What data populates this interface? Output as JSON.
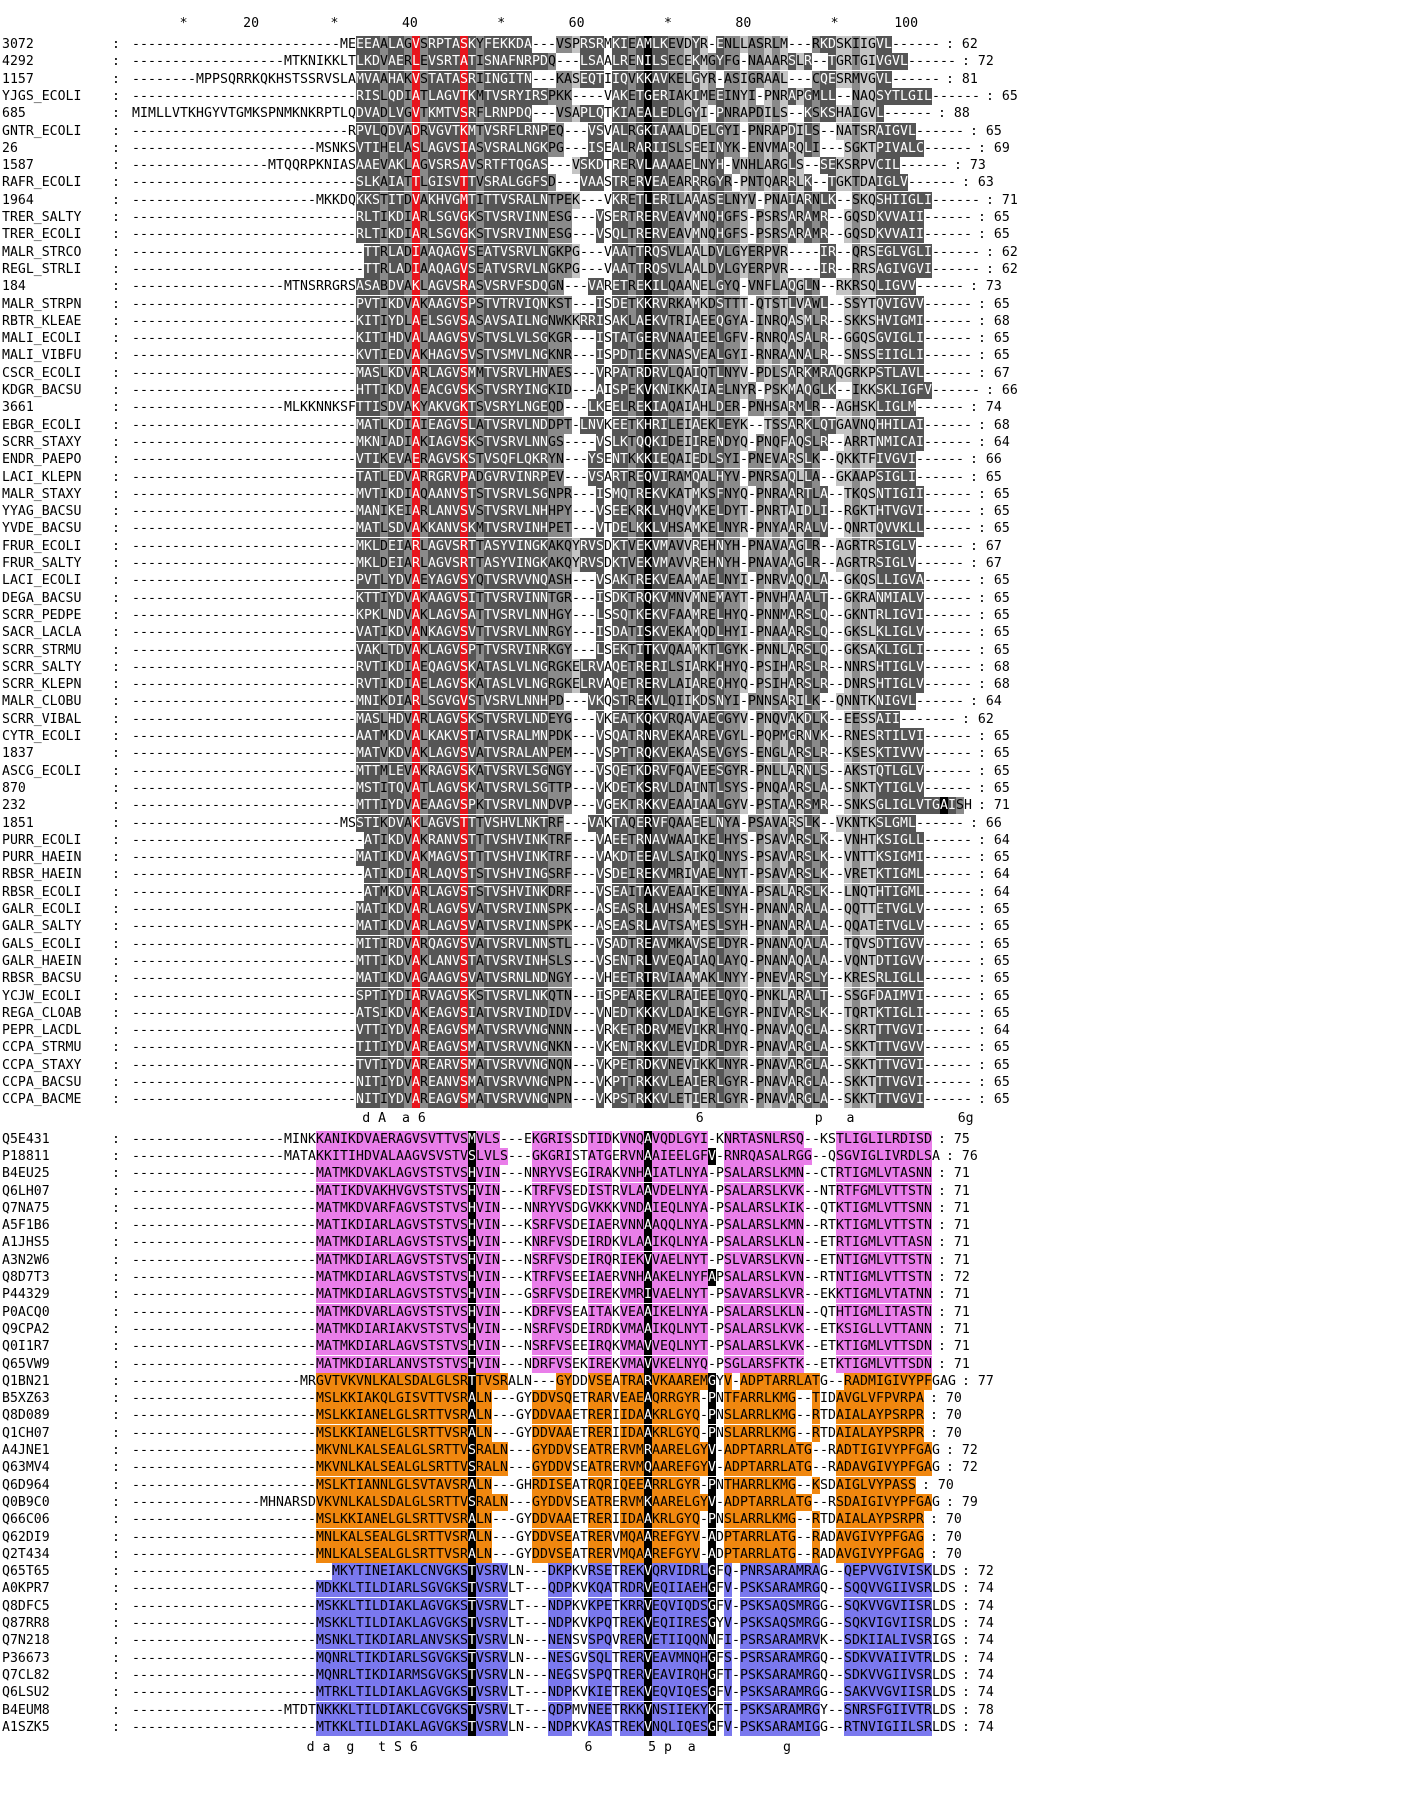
{
  "ruler": "      *       20         *        40          *        60          *        80          *       100",
  "block1": {
    "conserved_label": "                             d A  a 6                                  6              p   a             6g",
    "rows": [
      [
        "3072",
        "--------------------------MEEEAALAGVSRPTASKYFEKKDA---VSPRSRMKIEAMLKEVDYR-ENLLASRLM---RKDSKIIGVL------",
        "62"
      ],
      [
        "4292",
        "-------------------MTKNIKKLTLKDVAERLEVSRTATISNAFNRPDQ---LSAALRENILSECEKMGYFG-NAAARSLR--TGRTGIVGVL------",
        "72"
      ],
      [
        "1157",
        "--------MPPSQRRKQKHSTSSRVSLAMVAAHAKVSTATASRIINGITN---KASEQTIIQVKKAVKELGYR-ASIGRAAL---CQESRMVGVL------",
        "81"
      ],
      [
        "YJGS_ECOLI",
        "----------------------------RISLQDIATLAGVTKMTVSRYIRSPKK----VAKETGERIAKIMEEINYI-PNRAPGMLL--NAQSYTLGIL------",
        "65"
      ],
      [
        "685",
        "MIMLLVTKHGYVTGMKSPNMKNKRPTLQDVADLVGVTKMTVSRFLRNPDQ---VSAPLQTKIAEALEDLGYI-PNRAPDILS--KSKSHAIGVL------",
        "88"
      ],
      [
        "GNTR_ECOLI",
        "---------------------------RPVLQDVADRVGVTKMTVSRFLRNPEQ---VSVALRGKIAAALDELGYI-PNRAPDILS--NATSRAIGVL------",
        "65"
      ],
      [
        "26",
        "-----------------------MSNKSVTIHELASLAGVSIASVSRALNGKPG---ISEALRARIISLSEEINYK-ENVMARQLI---SGKTPIVALC------",
        "69"
      ],
      [
        "1587",
        "-----------------MTQQRPKNIASAAEVAKLAGVSRSAVSRTFTQGAS---VSKDTRERVLAAAAELNYH-VNHLARGLS--SEKSRPVCIL------",
        "73"
      ],
      [
        "RAFR_ECOLI",
        "----------------------------SLKAIATTLGISVTTVSRALGGFSD---VAASTRERVEAEARRRGYR-PNTQARRLK--TGKTDAIGLV------",
        "63"
      ],
      [
        "1964",
        "-----------------------MKKDQKKSTITDVAKHVGMTITTVSRALNTPEK---VKRETLERILAAASELNYV-PNAIARNLK--SKQSHIIGLI------",
        "71"
      ],
      [
        "TRER_SALTY",
        "----------------------------RLTIKDIARLSGVGKSTVSRVINNESG---VSERTRERVEAVMNQHGFS-PSRSARAMR--GQSDKVVAII------",
        "65"
      ],
      [
        "TRER_ECOLI",
        "----------------------------RLTIKDIARLSGVGKSTVSRVINNESG---VSQLTRERVEAVMNQHGFS-PSRSARAMR--GQSDKVVAII------",
        "65"
      ],
      [
        "MALR_STRCO",
        "-----------------------------TTRLADIAAQAGVSEATVSRVLNGKPG---VAATTRQSVLAALDVLGYERPVR----IR--QRSEGLVGLI------",
        "62"
      ],
      [
        "REGL_STRLI",
        "-----------------------------TTRLADIAAQAGVSEATVSRVLNGKPG---VAATTRQSVLAALDVLGYERPVR----IR--RRSAGIVGVI------",
        "62"
      ],
      [
        "184",
        "-------------------MTNSRRGRSASABDVAKLAGVSRASVSRVFSDQGN---VARETREKILQAANELGYQ-VNFLAQGLN--RKRSQLIGVV------",
        "73"
      ],
      [
        "MALR_STRPN",
        "----------------------------PVTIKDVAKAAGVSPSTVTRVIQNKST---ISDETKKRVRKAMKDSTTT-QTSTLVAWL--SSYTQVIGVV------",
        "65"
      ],
      [
        "RBTR_KLEAE",
        "----------------------------KITIYDLAELSGVSASAVSAILNGNWKKRRISAKLAEKVTRIAEEQGYA-INRQASMLR--SKKSHVIGMI------",
        "68"
      ],
      [
        "MALI_ECOLI",
        "----------------------------KITIHDVALAAGVSVSTVSLVLSGKGR---ISTATGERVNAAIEELGFV-RNRQASALR--GGQSGVIGLI------",
        "65"
      ],
      [
        "MALI_VIBFU",
        "----------------------------KVTIEDVAKHAGVSVSTVSMVLNGKNR---ISPDTIEKVNASVEALGYI-RNRAANALR--SNSSEIIGLI------",
        "65"
      ],
      [
        "CSCR_ECOLI",
        "----------------------------MASLKDVARLAGVSMMTVSRVLHNAES---VRPATRDRVLQAIQTLNYV-PDLSARKMRAQGRKPSTLAVL------",
        "67"
      ],
      [
        "KDGR_BACSU",
        "----------------------------HTTIKDVAEACGVSKSTVSRYINGKID---AISPEKVKNIKKAIAELNYR-PSKMAQGLK--IKKSKLIGFV------",
        "66"
      ],
      [
        "3661",
        "-------------------MLKKNNKSFTTISDVAKYAKVGKTSVSRYLNGEQD---LKEELREKIAQAIAHLDER-PNHSARMLR--AGHSKLIGLM------",
        "74"
      ],
      [
        "EBGR_ECOLI",
        "----------------------------MATLKDIAIEAGVSLATVSRVLNDDPT-LNVKEETKHRILEIAEKLEYK--TSSARKLQTGAVNQHHILAI------",
        "68"
      ],
      [
        "SCRR_STAXY",
        "----------------------------MKNIADIAKIAGVSKSTVSRVLNNGS----VSLKTQQKIDEIIRENDYQ-PNQFAQSLR--ARRTNMICAI------",
        "64"
      ],
      [
        "ENDR_PAEPO",
        "----------------------------VTIKEVAERAGVSKSTVSQFLQKRYN---YSENTKKKIEQAIEDLSYI-PNEVARSLK--QKKTFIVGVI------",
        "66"
      ],
      [
        "LACI_KLEPN",
        "----------------------------TATLEDVARRGRVPADGVRVINRPEV---VSARTREQVIRAMQALHYV-PNRSAQLLA--GKAAPSIGLI------",
        "65"
      ],
      [
        "MALR_STAXY",
        "----------------------------MVTIKDIAQAANVSTSTVSRVLSGNPR---ISMQTREKVKATMKSFNYQ-PNRAARTLA--TKQSNTIGII------",
        "65"
      ],
      [
        "YYAG_BACSU",
        "----------------------------MANIKEIARLANVSVSTVSRVLNHHPY---VSEEKRKLVHQVMKELDYT-PNRTAIDLI--RGKTHTVGVI------",
        "65"
      ],
      [
        "YVDE_BACSU",
        "----------------------------MATLSDVAKKANVSKMTVSRVINHPET---VTDELKKLVHSAMKELNYR-PNYAARALV--QNRTQVVKLL------",
        "65"
      ],
      [
        "FRUR_ECOLI",
        "----------------------------MKLDEIARLAGVSRTTASYVINGKAKQYRVSDKTVEKVMAVVREHNYH-PNAVAAGLR--AGRTRSIGLV------",
        "67"
      ],
      [
        "FRUR_SALTY",
        "----------------------------MKLDEIARLAGVSRTTASYVINGKAKQYRVSDKTVEKVMAVVREHNYH-PNAVAAGLR--AGRTRSIGLV------",
        "67"
      ],
      [
        "LACI_ECOLI",
        "----------------------------PVTLYDVAEYAGVSYQTVSRVVNQASH---VSAKTREKVEAAMAELNYI-PNRVAQQLA--GKQSLLIGVA------",
        "65"
      ],
      [
        "DEGA_BACSU",
        "----------------------------KTTIYDVAKAAGVSITTVSRVINNTGR---ISDKTRQKVMNVMNEMAYT-PNVHAAALT--GKRANMIALV------",
        "65"
      ],
      [
        "SCRR_PEDPE",
        "----------------------------KPKLNDVAKLAGVSATTVSRVLNNHGY---LSSQTKEKVFAAMRELHYQ-PNNMARSLQ--GKNTRLIGVI------",
        "65"
      ],
      [
        "SACR_LACLA",
        "----------------------------VATIKDVANKAGVSVTTVSRVLNNRGY---ISDATISKVEKAMQDLHYI-PNAAARSLQ--GKSLKLIGLV------",
        "65"
      ],
      [
        "SCRR_STRMU",
        "----------------------------VAKLTDVAKLAGVSPTTVSRVINRKGY---LSEKTITKVQAAMKTLGYK-PNNLARSLQ--GKSAKLIGLI------",
        "65"
      ],
      [
        "SCRR_SALTY",
        "----------------------------RVTIKDIAEQAGVSKATASLVLNGRGKELRVAQETRERILSIARKHHYQ-PSIHARSLR--NNRSHTIGLV------",
        "68"
      ],
      [
        "SCRR_KLEPN",
        "----------------------------RVTIKDIAELAGVSKATASLVLNGRGKELRVAQETRERVLAIAREQHYQ-PSIHARSLR--DNRSHTIGLV------",
        "68"
      ],
      [
        "MALR_CLOBU",
        "----------------------------MNIKDIARLSGVGVSTVSRVLNNHPD---VKQSTREKVLQIIKDSNYI-PNNSARILK--QNNTKNIGVL------",
        "64"
      ],
      [
        "SCRR_VIBAL",
        "----------------------------MASLHDVARLAGVSKSTVSRVLNDEYG---VKEATKQKVRQAVAECGYV-PNQVAKDLK--EESSAII-------",
        "62"
      ],
      [
        "CYTR_ECOLI",
        "----------------------------AATMKDVALKAKVSTATVSRALMNPDK---VSQATRNRVEKAAREVGYL-PQPMGRNVK--RNESRTILVI------",
        "65"
      ],
      [
        "1837",
        "----------------------------MATVKDVAKLAGVSVATVSRALANPEM---VSPTTRQKVEKAASEVGYS-ENGLARSLR--KSESKTIVVV------",
        "65"
      ],
      [
        "ASCG_ECOLI",
        "----------------------------MTTMLEVAKRAGVSKATVSRVLSGNGY---VSQETKDRVFQAVEESGYR-PNLLARNLS--AKSTQTLGLV------",
        "65"
      ],
      [
        "870",
        "----------------------------MSTITQVATLAGVSKATVSRVLSGTTP---VKDETKSRVLDAINTLSYS-PNQAARSLA--SNKTYTIGLV------",
        "65"
      ],
      [
        "232",
        "----------------------------MTTIYDVAEAAGVSPKTVSRVLNNDVP---VGEKTRKKVEAAIAALGYV-PSTAARSMR--SNKSGLIGLVTGAISH",
        "71"
      ],
      [
        "1851",
        "--------------------------MSSTIKDVAKLAGVSTTTVSHVLNKTRF---VAKTAQERVFQAAEELNYA-PSAVARSLK--VKNTKSLGML------",
        "66"
      ],
      [
        "PURR_ECOLI",
        "-----------------------------ATIKDVAKRANVSTTTVSHVINKTRF---VAEETRNAVWAAIKELHYS-PSAVARSLK--VNHTKSIGLL------",
        "64"
      ],
      [
        "PURR_HAEIN",
        "----------------------------MATIKDVAKMAGVSTTTVSHVINKTRF---VAKDTEEAVLSAIKQLNYS-PSAVARSLK--VNTTKSIGMI------",
        "65"
      ],
      [
        "RBSR_HAEIN",
        "-----------------------------ATIKDIARLAQVSTSTVSHVINGSRF---VSDEIREKVMRIVAELNYT-PSAVARSLK--VRETKTIGML------",
        "64"
      ],
      [
        "RBSR_ECOLI",
        "-----------------------------ATMKDVARLAGVSTSTVSHVINKDRF---VSEAITAKVEAAIKELNYA-PSALARSLK--LNQTHTIGML------",
        "64"
      ],
      [
        "GALR_ECOLI",
        "----------------------------MATIKDVARLAGVSVATVSRVINNSPK---ASEASRLAVHSAMESLSYH-PNANARALA--QQTTETVGLV------",
        "65"
      ],
      [
        "GALR_SALTY",
        "----------------------------MATIKDVARLAGVSVATVSRVINNSPK---ASEASRLAVTSAMESLSYH-PNANARALA--QQATETVGLV------",
        "65"
      ],
      [
        "GALS_ECOLI",
        "----------------------------MITIRDVARQAGVSVATVSRVLNNSTL---VSADTREAVMKAVSELDYR-PNANAQALA--TQVSDTIGVV------",
        "65"
      ],
      [
        "GALR_HAEIN",
        "----------------------------MTTIKDVAKLANVSTATVSRVINHSLS---VSENTRLVVEQAIAQLAYQ-PNANAQALA--VQNTDTIGVV------",
        "65"
      ],
      [
        "RBSR_BACSU",
        "----------------------------MATIKDVAGAAGVSVATVSRNLNDNGY---VHEETRTRVIAAMAKLNYY-PNEVARSLY--KRESRLIGLL------",
        "65"
      ],
      [
        "YCJW_ECOLI",
        "----------------------------SPTIYDIARVAGVSKSTVSRVLNKQTN---ISPEAREKVLRAIEELQYQ-PNKLARALT--SSGFDAIMVI------",
        "65"
      ],
      [
        "REGA_CLOAB",
        "----------------------------ATSIKDVAKEAGVSIATVSRVINDIDV---VNEDTKKKVLDAIKELGYR-PNIVARSLK--TQRTKTIGLI------",
        "65"
      ],
      [
        "PEPR_LACDL",
        "----------------------------VTTIYDVAREAGVSMATVSRVVNGNNN---VRKETRDRVMEVIKRLHYQ-PNAVAQGLA--SKRTTTVGVI------",
        "64"
      ],
      [
        "CCPA_STRMU",
        "----------------------------TITIYDVAREAGVSMATVSRVVNGNKN---VKENTRKKVLEVIDRLDYR-PNAVARGLA--SKKTTTVGVV------",
        "65"
      ],
      [
        "CCPA_STAXY",
        "----------------------------TVTIYDVAREARVSMATVSRVVNGNQN---VKPETRDKVNEVIKKLNYR-PNAVARGLA--SKKTTTVGVI------",
        "65"
      ],
      [
        "CCPA_BACSU",
        "----------------------------NITIYDVAREANVSMATVSRVVNGNPN---VKPTTRKKVLEAIERLGYR-PNAVARGLA--SKKTTTVGVI------",
        "65"
      ],
      [
        "CCPA_BACME",
        "----------------------------NITIYDVAREAGVSMATVSRVVNGNPN---VKPSTRKKVLETIERLGYR-PNAVARGLA--SKKTTTVGVI------",
        "65"
      ]
    ]
  },
  "block2": {
    "conserved_label": "                      d a  g   t S 6                     6       5 p  a           g",
    "rows": [
      [
        "Q5E431",
        "-------------------MINKKANIKDVAERAGVSVTTVSMVLS---EKGRISSDTIDKVNQAVQDLGYI-KNRTASNLRSQ--KSTLIGLILRDISD",
        "75"
      ],
      [
        "P18811",
        "-------------------MATAKKITIHDVALAAGVSVSTVSLVLS---GKGRISTATGERVNAAIEELGFV-RNRQASALRGG--QSGVIGLIVRDLSA",
        "76"
      ],
      [
        "B4EU25",
        "-----------------------MATMKDVAKLAGVSTSTVSHVIN---NNRYVSEGIRAKVNHAIATLNYA-PSALARSLKMN--CTRTIGMLVTASNN",
        "71"
      ],
      [
        "Q6LH07",
        "-----------------------MATIKDVAKHVGVSTSTVSHVIN---KTRFVSEDISTRVLAAVDELNYA-PSALARSLKVK--NTRTFGMLVTTSTN",
        "71"
      ],
      [
        "Q7NA75",
        "-----------------------MATMKDVARFAGVSTSTVSHVIN---NNRYVSDGVKKKVNDAIEQLNYA-PSALARSLKIK--QTKTIGMLVTTSNN",
        "71"
      ],
      [
        "A5F1B6",
        "-----------------------MATIKDIARLAGVSTSTVSHVIN---KSRFVSDEIAERVNNAAQQLNYA-PSALARSLKMN--RTKTIGMLVTTSTN",
        "71"
      ],
      [
        "A1JHS5",
        "-----------------------MATMKDIARLAGVSTSTVSHVIN---KNRFVSDEIRDKVLAAIKQLNYA-PSALARSLKLN--ETRTIGMLVTTASN",
        "71"
      ],
      [
        "A3N2W6",
        "-----------------------MATMKDIARLAGVSTSTVSHVIN---NSRFVSDEIRQRIEKVVAELNYT-PSLVARSLKVN--ETNTIGMLVTTSTN",
        "71"
      ],
      [
        "Q8D7T3",
        "-----------------------MATMKDIARLAGVSTSTVSHVIN---KTRFVSEEIAERVNHAAKELNYFAPSALARSLKVN--RTNTIGMLVTTSTN",
        "72"
      ],
      [
        "P44329",
        "-----------------------MATMKDIARLAGVSTSTVSHVIN---GSRFVSDEIREKVMRIVAELNYT-PSAVARSLKVR--EKKTIGMLVTATNN",
        "71"
      ],
      [
        "P0ACQ0",
        "-----------------------MATMKDVARLAGVSTSTVSHVIN---KDRFVSEAITAKVEAAIKELNYA-PSALARSLKLN--QTHTIGMLITASTN",
        "71"
      ],
      [
        "Q9CPA2",
        "-----------------------MATMKDIARIAKVSTSTVSHVIN---NSRFVSDEIRDKVMAAIKQLNYT-PSALARSLKVK--ETKSIGLLVTTANN",
        "71"
      ],
      [
        "Q0I1R7",
        "-----------------------MATMKDIARLAGVSTSTVSHVIN---NSRFVSEEIRQKVMAVVEQLNYT-PSALARSLKVK--ETKTIGMLVTTSDN",
        "71"
      ],
      [
        "Q65VW9",
        "-----------------------MATMKDIARLANVSTSTVSHVIN---NDRFVSEKIREKVMAVVKELNYQ-PSGLARSFKTK--ETKTIGMLVTTSDN",
        "71"
      ],
      [
        "Q1BN21",
        "---------------------MRGVTVKVNLKALSDALGLSRTTVSRALN---GYDDVSEATRARVKAAREMGYV-ADPTARRLATG--RADMIGIVYPFGAG",
        "77"
      ],
      [
        "B5XZ63",
        "-----------------------MSLKKIAKQLGISVTTVSRALN---GYDDVSQETRARVEAEAQRRGYR-PNTFARRLKMG--TIDAVGLVFPVRPA",
        "70"
      ],
      [
        "Q8D089",
        "-----------------------MSLKKIANELGLSRTTVSRALN---GYDDVAAETRERIIDAAKRLGYQ-PNSLARRLKMG--RTDAIALAYPSRPR",
        "70"
      ],
      [
        "Q1CH07",
        "-----------------------MSLKKIANELGLSRTTVSRALN---GYDDVAAETRERIIDAAKRLGYQ-PNSLARRLKMG--RTDAIALAYPSRPR",
        "70"
      ],
      [
        "A4JNE1",
        "-----------------------MKVNLKALSEALGLSRTTVSRALN---GYDDVSEATRERVMRAAREL GYV-ADPTARRLATG--RADTIGIVYPFGAG",
        "72"
      ],
      [
        "Q63MV4",
        "-----------------------MKVNLKALSEALGLSRTTVSRALN---GYDDVSEATRERVMQAAREFGYV-ADPTARRLATG--RADAVGIVYPFGAG",
        "72"
      ],
      [
        "Q6D964",
        "-----------------------MSLKTIANNLGLSVTAVSRALN---GHRDISEATRQRIQEEARRLGYR-PNTHARRLKMG--KSDAIGLVYPASS",
        "70"
      ],
      [
        "Q0B9C0",
        "----------------MHNARSDVKVNLKALSDALGLSRTTVSRALN---GYDDVSEATRERVMKAARELGYV-ADPTARRLATG--RSDAIGIVYPFGAG",
        "79"
      ],
      [
        "Q66C06",
        "-----------------------MSLKKIANELGLSRTTVSRALN---GYDDVAAETRERIIDAAKRLGYQ-PNSLARRLKMG--RTDAIALAYPSRPR",
        "70"
      ],
      [
        "Q62DI9",
        "-----------------------MNLKALSEALGLSRTTVSRALN---GYDDVSEATRERVMQAAREFGYV-ADPTARRLATG--RADAVGIVYPFGAG",
        "70"
      ],
      [
        "Q2T434",
        "-----------------------MNLKALSEALGLSRTTVSRALN---GYDDVSEATRERVMQAAREFGYV-ADPTARRLATG--RADAVGIVYPFGAG",
        "70"
      ],
      [
        "Q65T65",
        "-------------------------MKYTINEIAKLCNVGKSTVSRVLN---DKPKVRSETREKVQRVIDRLGFQ-PNRSARAMRAG--QEPVVGIVISKLDS",
        "72"
      ],
      [
        "A0KPR7",
        "-----------------------MDKKLTILDIARLSGVGKSTVSRVLT---QDPKVKQATRDRVEQIIAEHGFV-PSKSARAMRGQ--SQQVVGIIVSRLDS",
        "74"
      ],
      [
        "Q8DFC5",
        "-----------------------MSKKLTILDIAKLAGVGKSTVSRVLT---NDPKVKPETKRRVEQVIQDSGFV-PSKSAQSMRGG--SQKVVGVIISRLDS",
        "74"
      ],
      [
        "Q87RR8",
        "-----------------------MSKKLTILDIAKLAGVGKSTVSRVLT---NDPKVKPQTREKVEQIIRESGYV-PSKSAQSMRGG--SQKVIGVIISRLDS",
        "74"
      ],
      [
        "Q7N218",
        "-----------------------MSNKLTIKDIARLANVSKSTVSRVLN---NENSVSPQVRERVETIIQQNNFI-PSRSARAMRVK--SDKIIALIVSRIGS",
        "74"
      ],
      [
        "P36673",
        "-----------------------MQNRLTIKDIARLSGVGKSTVSRVLN---NESGVSQLTRERVEAVMNQHGFS-PSRSARAMRGQ--SDKVVAIIVTRLDS",
        "74"
      ],
      [
        "Q7CL82",
        "-----------------------MQNRLTIKDIARMSGVGKSTVSRVLN---NEGSVSPQTRERVEAVIRQHGFT-PSKSARAMRGQ--SDKVVGIIVSRLDS",
        "74"
      ],
      [
        "Q6LSU2",
        "-----------------------MTRKLTILDIAKLAGVGKSTVSRVLT---NDPKVKIETREKVEQVIQESGFV-PSKSARAMRGG--SAKVVGVIISRLDS",
        "74"
      ],
      [
        "B4EUM8",
        "-------------------MTDTNKKKLTILDIAKLCGVGKSTVSRVLT---QDPMVNEETRKKVNSIIEKYKFT-PSKSARAMRGY--SNRSFGIIVTRLDS",
        "78"
      ],
      [
        "A1SZK5",
        "-----------------------MTKKLTILDIAKLAGVGKSTVSRVLN---NDPKVKASTREKVNQLIQESGFV-PSKSARAMIGG--RTNVIGIILSRLDS",
        "74"
      ]
    ]
  },
  "colors": {
    "red": "#e8141c",
    "black": "#000000",
    "dark_gray": "#555555",
    "mid_gray": "#8a8a8a",
    "light_gray": "#c4c4c4",
    "pink": "#e97ee9",
    "orange": "#f0870f",
    "blue": "#7a78ee"
  }
}
